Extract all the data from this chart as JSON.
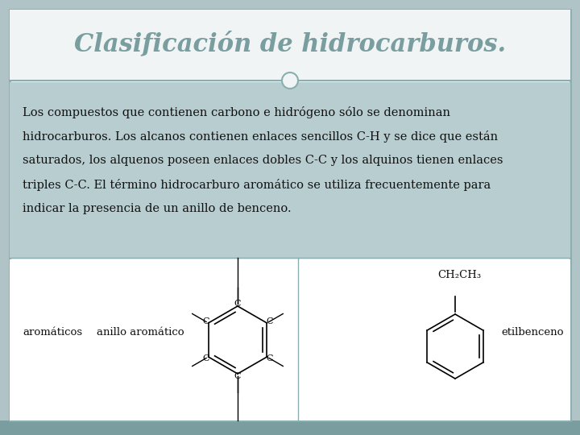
{
  "title": "Clasificación de hidrocarburos.",
  "title_color": "#7a9e9f",
  "title_fontsize": 22,
  "bg_slide": "#b0c4c8",
  "bg_body": "#b8cdd0",
  "bg_white": "#f0f4f4",
  "bg_chem": "#ffffff",
  "border_color": "#8aaeb0",
  "body_text_line1": "Los compuestos que contienen carbono e hidrógeno sólo se denominan",
  "body_text_line2": "hidrocarburos. Los alcanos contienen enlaces sencillos C-H y se dice que están",
  "body_text_line3": "saturados, los alquenos poseen enlaces dobles C-C y los alquinos tienen enlaces",
  "body_text_line4": "triples C-C. El término hidrocarburo aromático se utiliza frecuentemente para",
  "body_text_line5": "indicar la presencia de un anillo de benceno.",
  "body_fontsize": 10.5,
  "label_aromaticos": "aromáticos",
  "label_anillo": "anillo aromático",
  "label_etilbenceno": "etilbenceno",
  "label_ch2ch3": "CH₂CH₃",
  "bottom_band_color": "#7a9ea0",
  "divider_color": "#8aaeb0"
}
